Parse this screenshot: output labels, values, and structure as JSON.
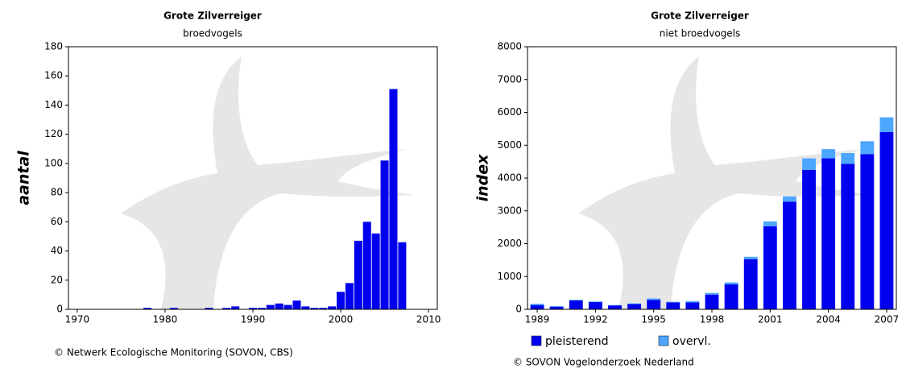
{
  "charts": [
    {
      "type": "bar",
      "title": "Grote Zilverreiger",
      "subtitle": "broedvogels",
      "ylabel": "aantal",
      "footer": "© Netwerk Ecologische Monitoring (SOVON, CBS)",
      "color": "#0000ee",
      "x": [
        1978,
        1981,
        1985,
        1987,
        1988,
        1990,
        1991,
        1992,
        1993,
        1994,
        1995,
        1996,
        1997,
        1998,
        1999,
        2000,
        2001,
        2002,
        2003,
        2004,
        2005,
        2006,
        2007
      ],
      "values": [
        1,
        1,
        1,
        1,
        2,
        1,
        1,
        3,
        4,
        3,
        6,
        2,
        1,
        1,
        2,
        12,
        18,
        47,
        60,
        52,
        102,
        151,
        46
      ],
      "xlim": [
        1969,
        2011
      ],
      "xticks": [
        1970,
        1980,
        1990,
        2000,
        2010
      ],
      "ylim": [
        0,
        180
      ],
      "yticks": [
        0,
        20,
        40,
        60,
        80,
        100,
        120,
        140,
        160,
        180
      ]
    },
    {
      "type": "stacked_bar",
      "title": "Grote Zilverreiger",
      "subtitle": "niet broedvogels",
      "ylabel": "index",
      "footer": "© SOVON Vogelonderzoek Nederland",
      "categories": [
        "1989",
        null,
        null,
        "1992",
        null,
        null,
        "1995",
        null,
        null,
        "1998",
        null,
        null,
        "2001",
        null,
        null,
        "2004",
        null,
        null,
        "2007"
      ],
      "series": [
        {
          "name": "pleisterend",
          "color": "#0000ee",
          "values": [
            130,
            80,
            270,
            220,
            120,
            160,
            290,
            210,
            210,
            450,
            760,
            1530,
            2530,
            3280,
            4250,
            4600,
            4430,
            4730,
            5400
          ]
        },
        {
          "name": "overvl.",
          "color": "#4da6ff",
          "values": [
            40,
            20,
            20,
            20,
            10,
            20,
            40,
            20,
            40,
            50,
            60,
            70,
            150,
            160,
            350,
            280,
            330,
            390,
            450
          ]
        }
      ],
      "ylim": [
        0,
        8000
      ],
      "yticks": [
        0,
        1000,
        2000,
        3000,
        4000,
        5000,
        6000,
        7000,
        8000
      ]
    }
  ]
}
